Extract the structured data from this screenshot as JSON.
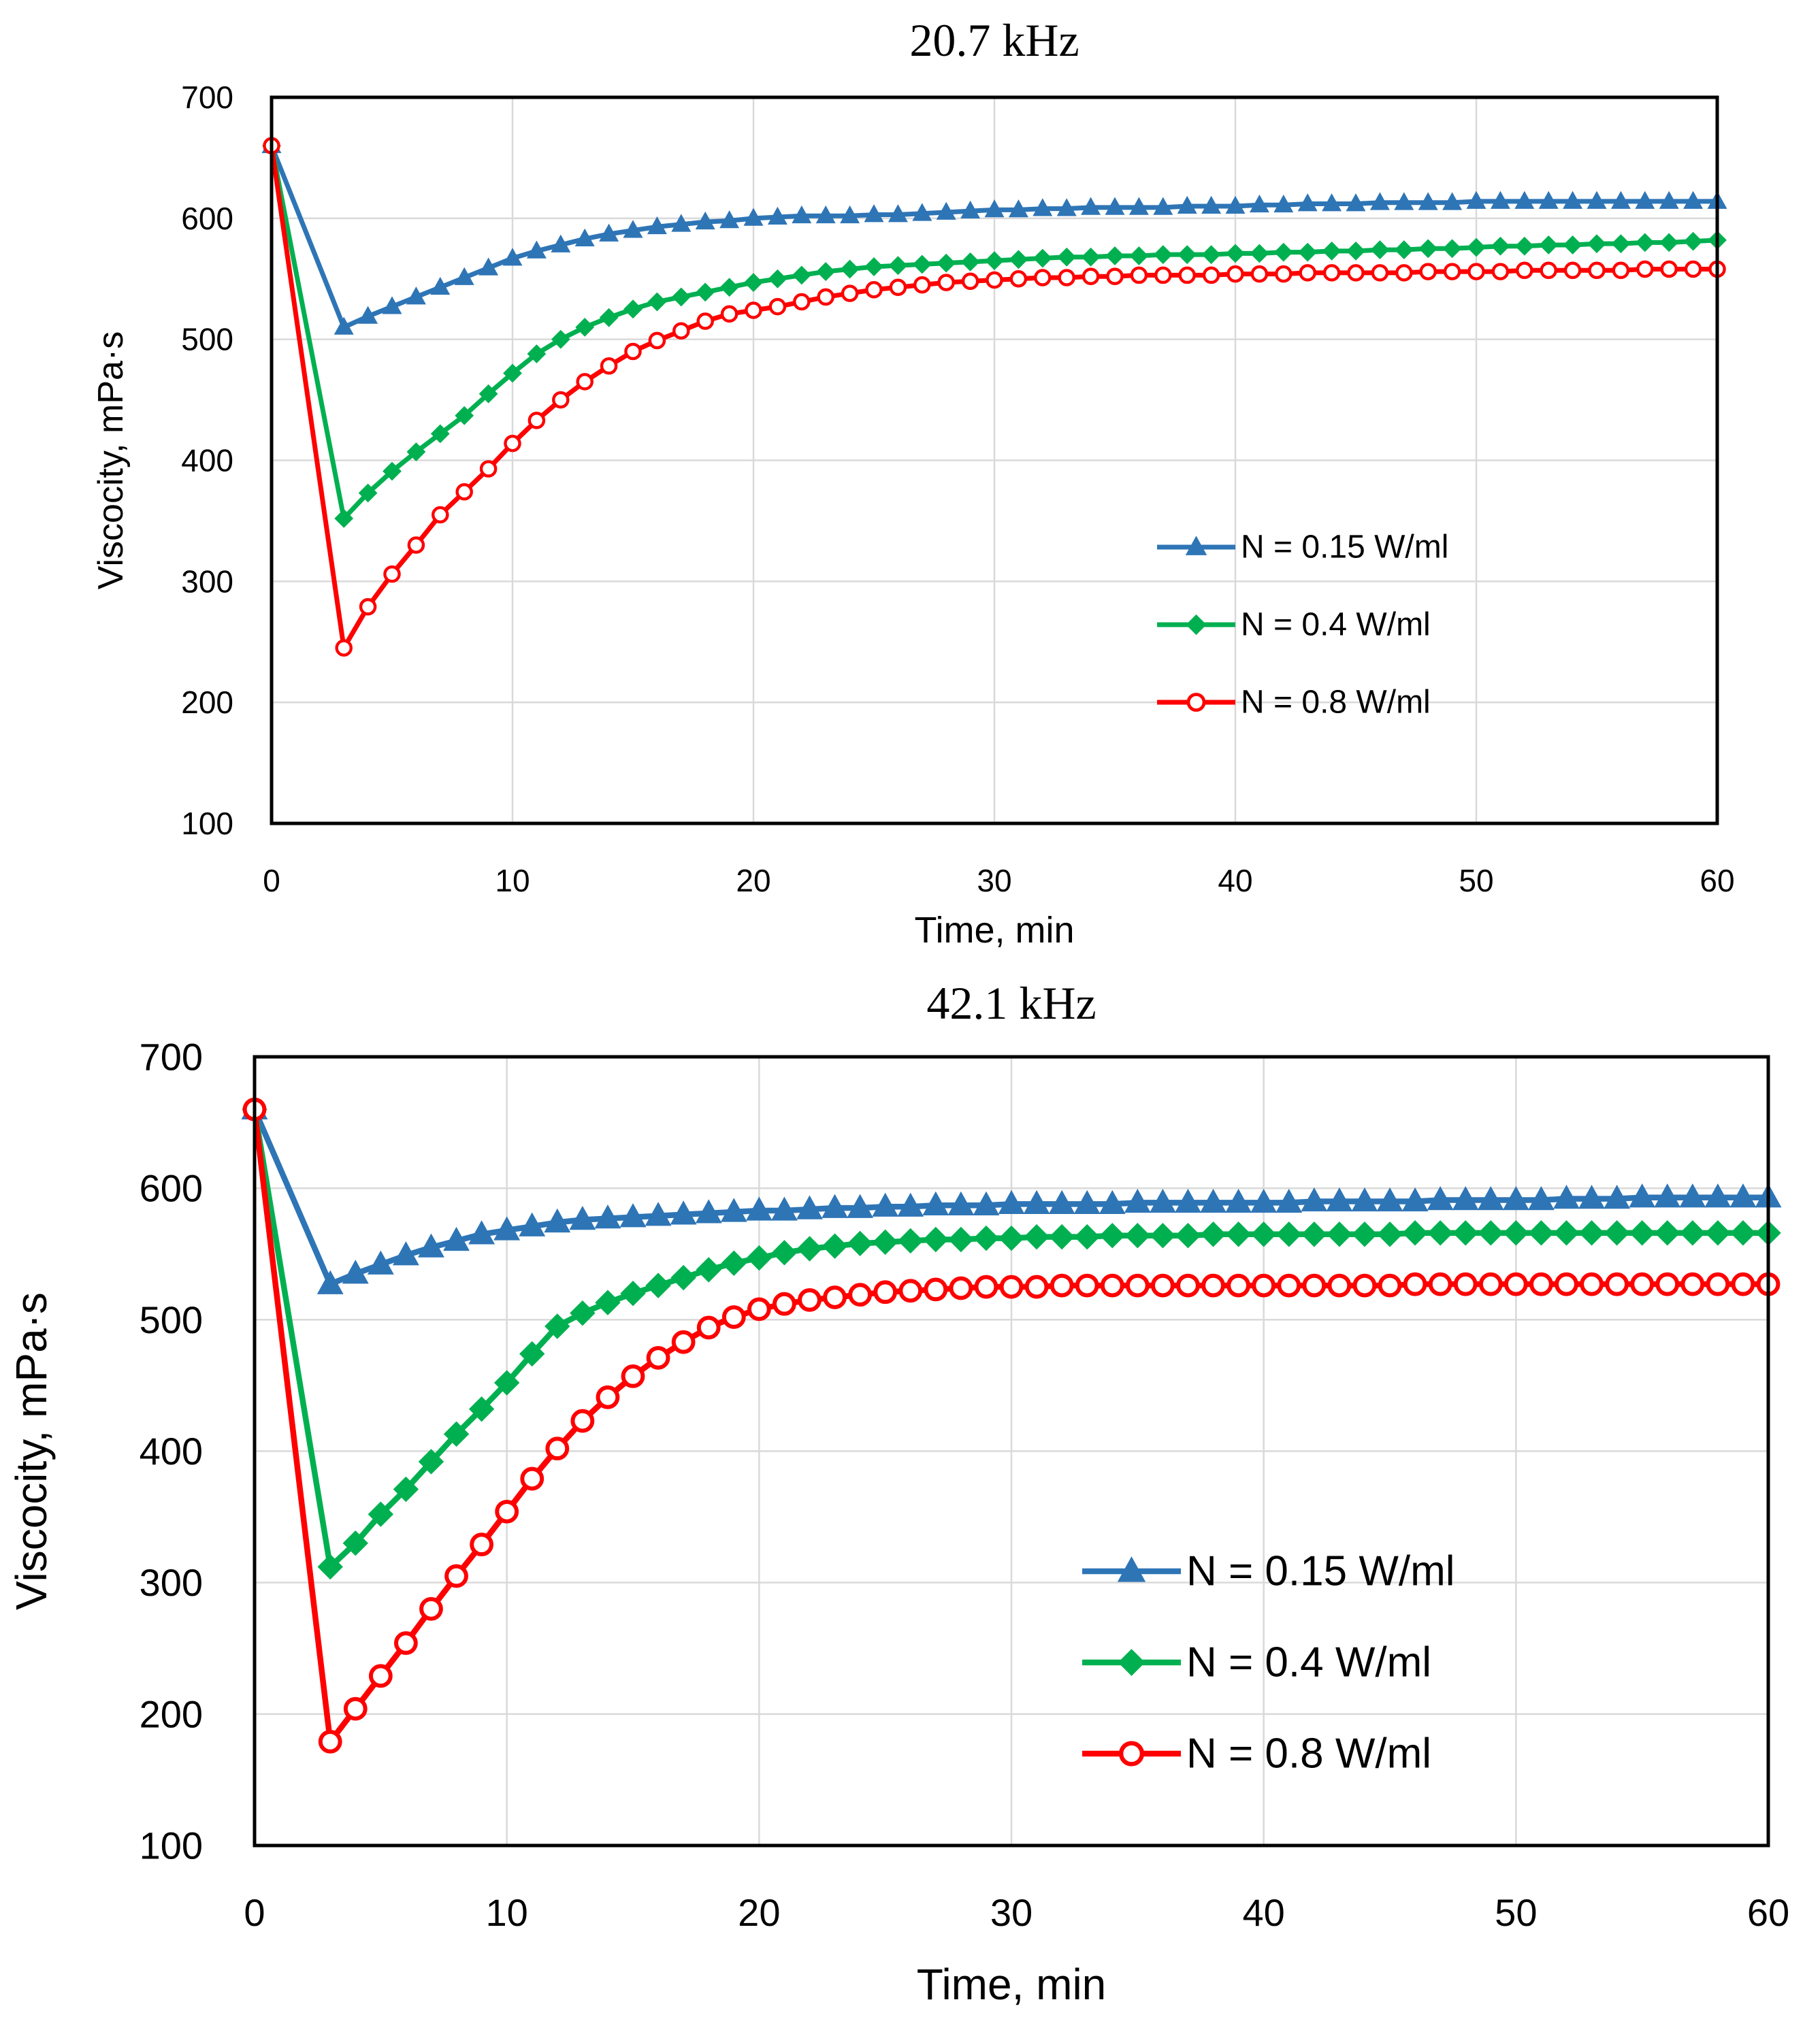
{
  "chart_data": [
    {
      "type": "line",
      "title": "20.7 kHz",
      "xlabel": "Time, min",
      "ylabel": "Viscocity, mPa·s",
      "xlim": [
        0,
        60
      ],
      "ylim": [
        100,
        700
      ],
      "xticks": [
        0,
        10,
        20,
        30,
        40,
        50,
        60
      ],
      "yticks": [
        100,
        200,
        300,
        400,
        500,
        600,
        700
      ],
      "grid": true,
      "legend_position": "center-right",
      "x": [
        0,
        3,
        4,
        5,
        6,
        7,
        8,
        9,
        10,
        11,
        12,
        13,
        14,
        15,
        16,
        17,
        18,
        19,
        20,
        21,
        22,
        23,
        24,
        25,
        26,
        27,
        28,
        29,
        30,
        31,
        32,
        33,
        34,
        35,
        36,
        37,
        38,
        39,
        40,
        41,
        42,
        43,
        44,
        45,
        46,
        47,
        48,
        49,
        50,
        51,
        52,
        53,
        54,
        55,
        56,
        57,
        58,
        59,
        60
      ],
      "series": [
        {
          "name": "N = 0.15 W/ml",
          "color": "#2E75B6",
          "marker": "triangle",
          "values": [
            660,
            510,
            519,
            527,
            535,
            543,
            551,
            559,
            567,
            573,
            578,
            583,
            587,
            590,
            593,
            595,
            597,
            598,
            600,
            601,
            602,
            602,
            602,
            603,
            603,
            604,
            605,
            606,
            607,
            607,
            608,
            608,
            609,
            609,
            609,
            609,
            610,
            610,
            610,
            611,
            611,
            612,
            612,
            612,
            613,
            613,
            613,
            613,
            614,
            614,
            614,
            614,
            614,
            614,
            614,
            614,
            614,
            614,
            614
          ]
        },
        {
          "name": "N = 0.4 W/ml",
          "color": "#00B050",
          "marker": "diamond",
          "values": [
            660,
            352,
            373,
            391,
            407,
            422,
            437,
            455,
            472,
            488,
            500,
            510,
            518,
            525,
            531,
            535,
            539,
            543,
            547,
            550,
            553,
            556,
            558,
            560,
            561,
            562,
            563,
            564,
            565,
            566,
            567,
            568,
            568,
            569,
            569,
            570,
            570,
            570,
            571,
            571,
            572,
            572,
            573,
            573,
            574,
            574,
            575,
            575,
            576,
            577,
            577,
            578,
            578,
            579,
            579,
            580,
            580,
            581,
            582
          ]
        },
        {
          "name": "N = 0.8 W/ml",
          "color": "#FF0000",
          "marker": "circle",
          "values": [
            660,
            245,
            279,
            306,
            330,
            355,
            374,
            393,
            414,
            433,
            450,
            465,
            478,
            490,
            499,
            507,
            515,
            521,
            524,
            527,
            531,
            535,
            538,
            541,
            543,
            545,
            547,
            548,
            549,
            550,
            551,
            551,
            552,
            552,
            553,
            553,
            553,
            553,
            554,
            554,
            554,
            555,
            555,
            555,
            555,
            555,
            556,
            556,
            556,
            556,
            557,
            557,
            557,
            557,
            557,
            558,
            558,
            558,
            558
          ]
        }
      ]
    },
    {
      "type": "line",
      "title": "42.1 kHz",
      "xlabel": "Time, min",
      "ylabel": "Viscocity, mPa·s",
      "xlim": [
        0,
        60
      ],
      "ylim": [
        100,
        700
      ],
      "xticks": [
        0,
        10,
        20,
        30,
        40,
        50,
        60
      ],
      "yticks": [
        100,
        200,
        300,
        400,
        500,
        600,
        700
      ],
      "grid": true,
      "legend_position": "lower-right",
      "x": [
        0,
        3,
        4,
        5,
        6,
        7,
        8,
        9,
        10,
        11,
        12,
        13,
        14,
        15,
        16,
        17,
        18,
        19,
        20,
        21,
        22,
        23,
        24,
        25,
        26,
        27,
        28,
        29,
        30,
        31,
        32,
        33,
        34,
        35,
        36,
        37,
        38,
        39,
        40,
        41,
        42,
        43,
        44,
        45,
        46,
        47,
        48,
        49,
        50,
        51,
        52,
        53,
        54,
        55,
        56,
        57,
        58,
        59,
        60
      ],
      "series": [
        {
          "name": "N = 0.15 W/ml",
          "color": "#2E75B6",
          "marker": "triangle",
          "values": [
            660,
            527,
            535,
            542,
            549,
            555,
            560,
            565,
            568,
            571,
            574,
            576,
            577,
            578,
            579,
            580,
            581,
            582,
            583,
            583,
            584,
            585,
            585,
            586,
            586,
            587,
            587,
            587,
            588,
            588,
            588,
            588,
            588,
            589,
            589,
            589,
            589,
            589,
            589,
            589,
            590,
            590,
            590,
            590,
            590,
            591,
            591,
            591,
            591,
            591,
            592,
            592,
            592,
            593,
            593,
            593,
            593,
            593,
            593
          ]
        },
        {
          "name": "N = 0.4 W/ml",
          "color": "#00B050",
          "marker": "diamond",
          "values": [
            660,
            312,
            330,
            352,
            371,
            392,
            413,
            432,
            452,
            474,
            495,
            505,
            513,
            520,
            526,
            532,
            538,
            543,
            547,
            551,
            554,
            556,
            558,
            559,
            560,
            561,
            561,
            562,
            562,
            563,
            563,
            563,
            564,
            564,
            564,
            564,
            565,
            565,
            565,
            565,
            565,
            565,
            565,
            565,
            566,
            566,
            566,
            566,
            566,
            566,
            566,
            566,
            566,
            566,
            566,
            566,
            566,
            566,
            566
          ]
        },
        {
          "name": "N = 0.8 W/ml",
          "color": "#FF0000",
          "marker": "circle",
          "values": [
            660,
            179,
            204,
            229,
            254,
            280,
            305,
            329,
            354,
            379,
            402,
            423,
            441,
            457,
            471,
            483,
            494,
            502,
            508,
            512,
            515,
            517,
            519,
            521,
            522,
            523,
            524,
            525,
            525,
            525,
            526,
            526,
            526,
            526,
            526,
            526,
            526,
            526,
            526,
            526,
            526,
            526,
            526,
            526,
            527,
            527,
            527,
            527,
            527,
            527,
            527,
            527,
            527,
            527,
            527,
            527,
            527,
            527,
            527
          ]
        }
      ]
    }
  ]
}
